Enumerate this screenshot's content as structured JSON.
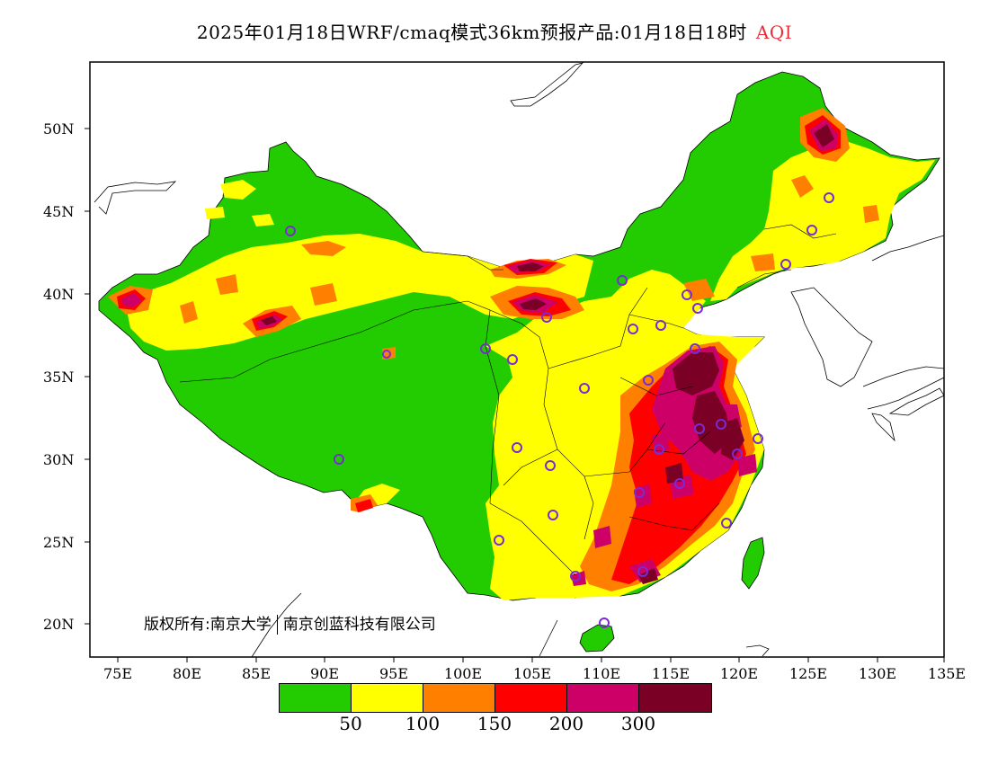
{
  "title": {
    "main": "2025年01月18日WRF/cmaq模式36km预报产品:01月18日18时",
    "variable": "AQI"
  },
  "copyright": {
    "left": "版权所有:南京大学",
    "right": "南京创蓝科技有限公司"
  },
  "axes": {
    "lat_labels": [
      "50N",
      "45N",
      "40N",
      "35N",
      "30N",
      "25N",
      "20N"
    ],
    "lon_labels": [
      "75E",
      "80E",
      "85E",
      "90E",
      "95E",
      "100E",
      "105E",
      "110E",
      "115E",
      "120E",
      "125E",
      "130E",
      "135E"
    ]
  },
  "legend": {
    "colors": [
      "#22cc00",
      "#ffff00",
      "#ff8000",
      "#ff0000",
      "#cc0066",
      "#7a0025"
    ],
    "thresholds": [
      "50",
      "100",
      "150",
      "200",
      "300"
    ]
  },
  "colors": {
    "aqi_label": "#e8303a",
    "station_ring": "#7a2bd6"
  }
}
